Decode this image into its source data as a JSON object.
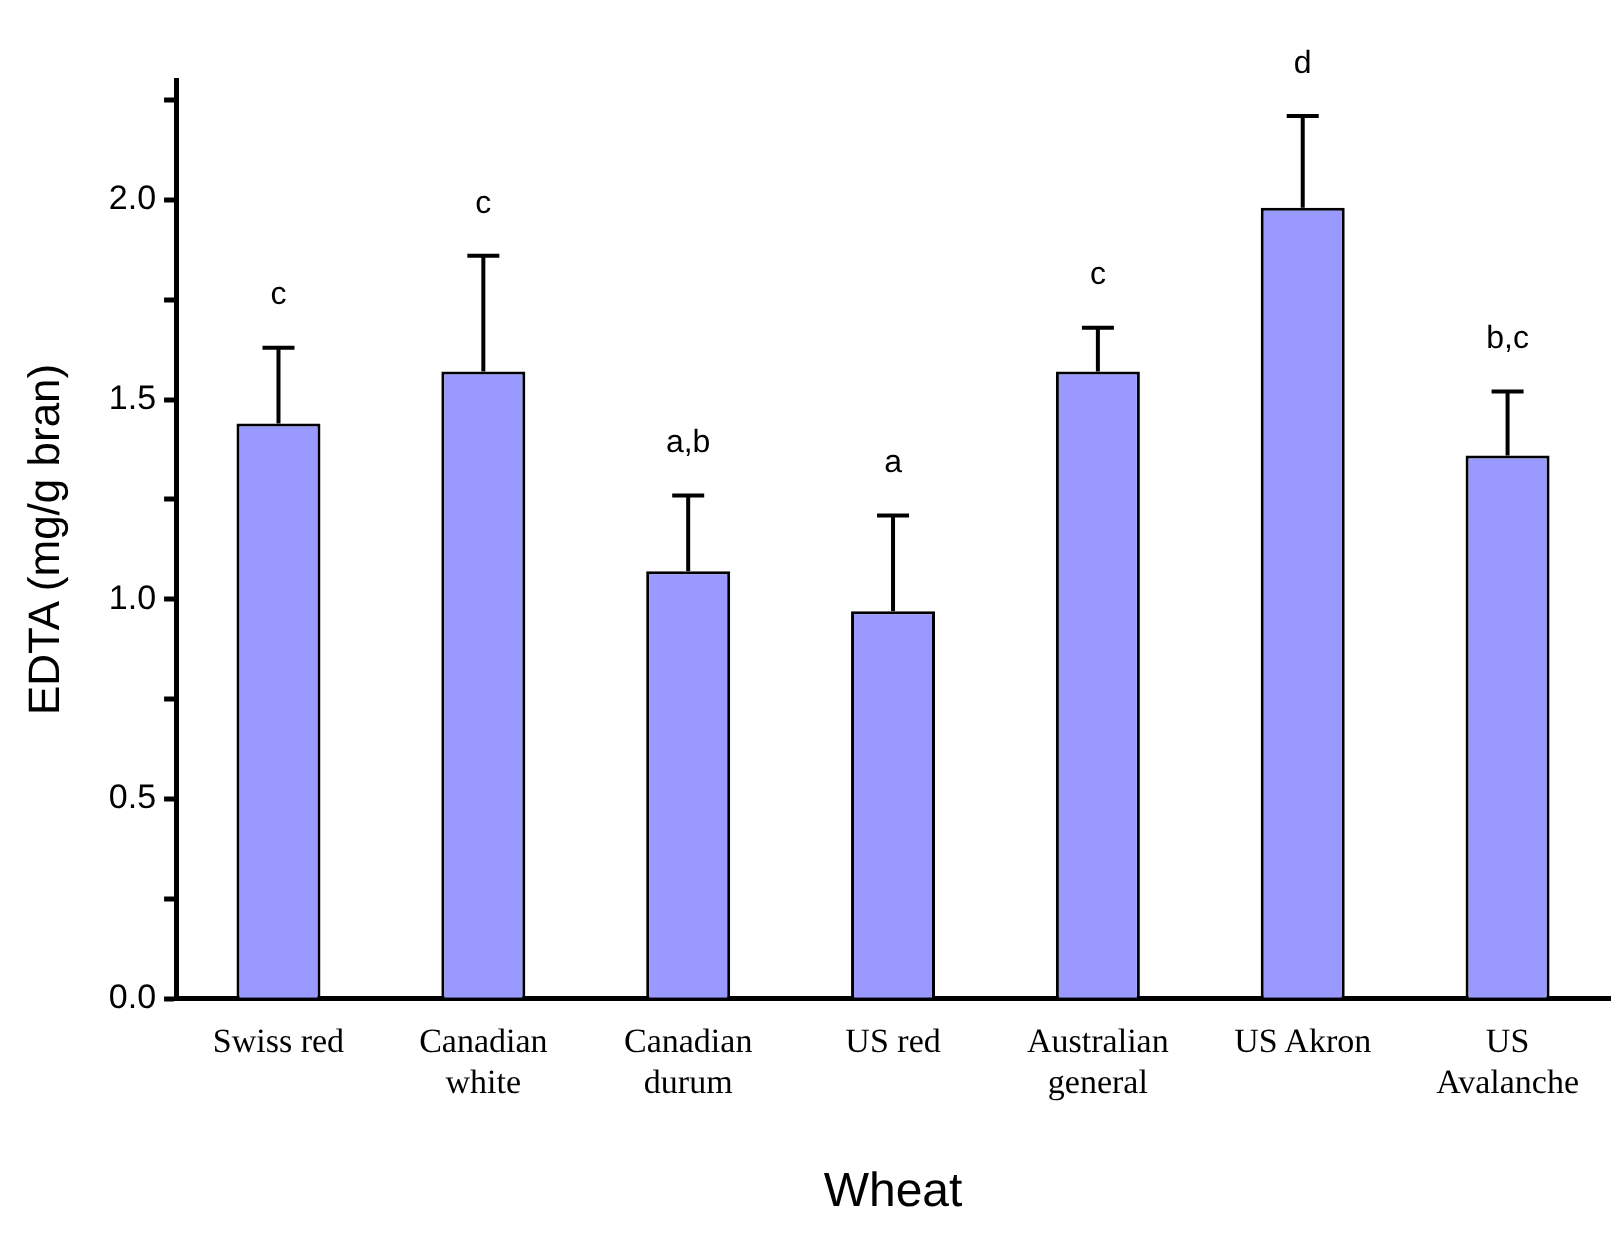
{
  "chart_data": {
    "type": "bar",
    "xlabel": "Wheat",
    "ylabel": "EDTA (mg/g bran)",
    "categories": [
      "Swiss red",
      "Canadian white",
      "Canadian durum",
      "US red",
      "Australian general",
      "US Akron",
      "US Avalanche"
    ],
    "values": [
      1.44,
      1.57,
      1.07,
      0.97,
      1.57,
      1.98,
      1.36
    ],
    "errors": [
      [
        1.44,
        1.63
      ],
      [
        1.57,
        1.86
      ],
      [
        1.07,
        1.26
      ],
      [
        0.97,
        1.21
      ],
      [
        1.57,
        1.68
      ],
      [
        1.98,
        2.21
      ],
      [
        1.36,
        1.52
      ]
    ],
    "color": "#9999ff",
    "ylim": [
      0,
      2.3
    ],
    "yticks": [
      {
        "value": 0,
        "label": "0.0"
      },
      {
        "value": 0.25,
        "label": null
      },
      {
        "value": 0.5,
        "label": "0.5"
      },
      {
        "value": 0.75,
        "label": null
      },
      {
        "value": 1,
        "label": "1.0"
      },
      {
        "value": 1.25,
        "label": null
      },
      {
        "value": 1.5,
        "label": "1.5"
      },
      {
        "value": 1.75,
        "label": null
      },
      {
        "value": 2,
        "label": "2.0"
      },
      {
        "value": 2.25,
        "label": null
      }
    ],
    "annotations": [
      "c",
      "c",
      "a,b",
      "a",
      "c",
      "d",
      "b,c"
    ],
    "grid": false,
    "legend": false
  }
}
